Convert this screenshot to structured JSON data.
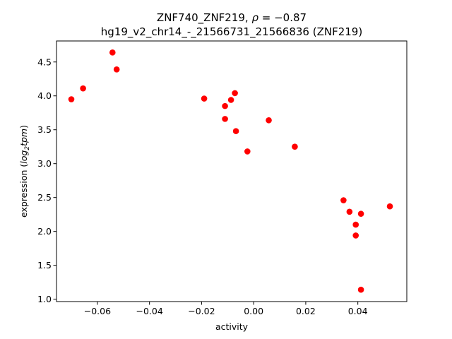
{
  "chart_data": {
    "type": "scatter",
    "title_line1_prefix": "ZNF740_ZNF219, ",
    "title_line1_rho": "ρ",
    "title_line1_suffix": " = −0.87",
    "title_line2": "hg19_v2_chr14_-_21566731_21566836 (ZNF219)",
    "xlabel": "activity",
    "ylabel_prefix": "expression (",
    "ylabel_log": "log",
    "ylabel_sub": "2",
    "ylabel_tpm": "tpm",
    "ylabel_suffix": ")",
    "xlim": [
      -0.0757,
      0.0588
    ],
    "ylim": [
      0.965,
      4.81
    ],
    "xticks": [
      {
        "value": -0.06,
        "label": "−0.06"
      },
      {
        "value": -0.04,
        "label": "−0.04"
      },
      {
        "value": -0.02,
        "label": "−0.02"
      },
      {
        "value": 0.0,
        "label": "0.00"
      },
      {
        "value": 0.02,
        "label": "0.02"
      },
      {
        "value": 0.04,
        "label": "0.04"
      }
    ],
    "yticks": [
      {
        "value": 1.0,
        "label": "1.0"
      },
      {
        "value": 1.5,
        "label": "1.5"
      },
      {
        "value": 2.0,
        "label": "2.0"
      },
      {
        "value": 2.5,
        "label": "2.5"
      },
      {
        "value": 3.0,
        "label": "3.0"
      },
      {
        "value": 3.5,
        "label": "3.5"
      },
      {
        "value": 4.0,
        "label": "4.0"
      },
      {
        "value": 4.5,
        "label": "4.5"
      }
    ],
    "marker_color": "#ff0000",
    "grid": false,
    "points": [
      {
        "x": -0.07,
        "y": 3.95
      },
      {
        "x": -0.0655,
        "y": 4.11
      },
      {
        "x": -0.0542,
        "y": 4.64
      },
      {
        "x": -0.0526,
        "y": 4.39
      },
      {
        "x": -0.019,
        "y": 3.96
      },
      {
        "x": -0.011,
        "y": 3.85
      },
      {
        "x": -0.011,
        "y": 3.66
      },
      {
        "x": -0.0087,
        "y": 3.94
      },
      {
        "x": -0.0072,
        "y": 4.04
      },
      {
        "x": -0.0068,
        "y": 3.48
      },
      {
        "x": -0.0024,
        "y": 3.18
      },
      {
        "x": 0.0058,
        "y": 3.64
      },
      {
        "x": 0.0158,
        "y": 3.25
      },
      {
        "x": 0.0345,
        "y": 2.46
      },
      {
        "x": 0.0368,
        "y": 2.29
      },
      {
        "x": 0.0392,
        "y": 2.1
      },
      {
        "x": 0.0392,
        "y": 1.94
      },
      {
        "x": 0.0412,
        "y": 2.26
      },
      {
        "x": 0.0412,
        "y": 1.14
      },
      {
        "x": 0.0523,
        "y": 2.37
      }
    ]
  }
}
